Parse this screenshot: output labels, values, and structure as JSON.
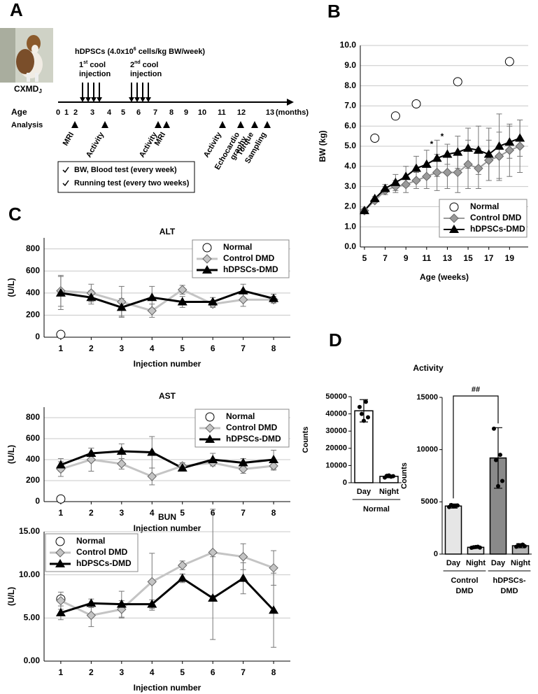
{
  "panel_labels": [
    "A",
    "B",
    "C",
    "D"
  ],
  "timeline": {
    "image_label_main": "CXMD",
    "image_label_sub": "J",
    "dose_prefix": "hDPSCs  (4.0x10",
    "dose_sup": "6",
    "dose_suffix": " cells/kg BW/week)",
    "injections": [
      {
        "ordinal": "1",
        "sup": "st",
        "text": " cool",
        "line2": "injection"
      },
      {
        "ordinal": "2",
        "sup": "nd",
        "text": " cool",
        "line2": "injection"
      }
    ],
    "ages": [
      "0",
      "1",
      "2",
      "3",
      "4",
      "5",
      "6",
      "7",
      "8",
      "9",
      "10",
      "11",
      "12",
      "13"
    ],
    "age_unit": "(months)",
    "age_label": "Age",
    "analysis_label": "Analysis",
    "analyses": [
      [
        "MRI"
      ],
      [
        "Activity"
      ],
      [
        "Activity"
      ],
      [
        "MRI"
      ],
      [
        "Activity"
      ],
      [
        "Echocardio",
        "graphy"
      ],
      [
        "Torque"
      ],
      [
        "Sampling"
      ]
    ],
    "notes": [
      "BW, Blood test (every week)",
      "Running test (every two weeks)"
    ]
  },
  "chart_data": [
    {
      "type": "line",
      "xlabel": "Age (weeks)",
      "ylabel": "BW (kg)",
      "x": [
        5,
        6,
        7,
        8,
        9,
        10,
        11,
        12,
        13,
        14,
        15,
        16,
        17,
        18,
        19,
        20
      ],
      "xlim": [
        4.6,
        20.8
      ],
      "xticks": [
        5,
        7,
        9,
        11,
        13,
        15,
        17,
        19
      ],
      "ylim": [
        0,
        10
      ],
      "yticks": [
        {
          "value": 0,
          "label": "0.0"
        },
        {
          "value": 1,
          "label": "1.0"
        },
        {
          "value": 2,
          "label": "2.0"
        },
        {
          "value": 3,
          "label": "3.0"
        },
        {
          "value": 4,
          "label": "4.0"
        },
        {
          "value": 5,
          "label": "5.0"
        },
        {
          "value": 6,
          "label": "6.0"
        },
        {
          "value": 7,
          "label": "7.0"
        },
        {
          "value": 8,
          "label": "8.0"
        },
        {
          "value": 9,
          "label": "9.0"
        },
        {
          "value": 10,
          "label": "10.0"
        }
      ],
      "grid": true,
      "legend": "lower right",
      "annotations": [
        "*",
        "*"
      ],
      "series": [
        {
          "name": "Normal",
          "color": "#000000",
          "marker": "circle",
          "line": false,
          "values": [
            null,
            5.4,
            null,
            6.5,
            null,
            7.1,
            null,
            null,
            null,
            8.2,
            null,
            null,
            null,
            null,
            9.2,
            null
          ]
        },
        {
          "name": "Control DMD",
          "color": "#9a9a9a",
          "marker": "diamond",
          "values": [
            1.8,
            2.3,
            2.8,
            3.0,
            3.1,
            3.3,
            3.5,
            3.7,
            3.7,
            3.7,
            4.1,
            3.9,
            4.3,
            4.5,
            4.8,
            5.0
          ],
          "errors": [
            0.1,
            0.1,
            0.2,
            0.3,
            0.4,
            0.4,
            0.6,
            0.9,
            0.8,
            1.0,
            1.2,
            1.0,
            1.0,
            1.2,
            1.3,
            1.3
          ]
        },
        {
          "name": "hDPSCs-DMD",
          "color": "#000000",
          "marker": "triangle",
          "values": [
            1.8,
            2.4,
            2.9,
            3.2,
            3.5,
            3.9,
            4.1,
            4.4,
            4.6,
            4.7,
            4.9,
            4.8,
            4.6,
            5.0,
            5.2,
            5.4
          ],
          "errors": [
            0.1,
            0.1,
            0.2,
            0.4,
            0.5,
            0.6,
            0.7,
            0.9,
            0.5,
            0.8,
            1.0,
            1.2,
            1.3,
            1.6,
            0.8,
            0.9
          ]
        }
      ]
    },
    {
      "type": "line",
      "title": "ALT",
      "xlabel": "Injection number",
      "ylabel": "(U/L)",
      "x": [
        1,
        2,
        3,
        4,
        5,
        6,
        7,
        8
      ],
      "xlim": [
        0.45,
        8.55
      ],
      "xticks": [
        1,
        2,
        3,
        4,
        5,
        6,
        7,
        8
      ],
      "ylim": [
        0,
        900
      ],
      "yticks": [
        0,
        200,
        400,
        600,
        800
      ],
      "grid": true,
      "legend": "upper right",
      "series": [
        {
          "name": "Normal",
          "color": "#000000",
          "marker": "circle",
          "line": false,
          "values": [
            25,
            null,
            null,
            null,
            null,
            null,
            null,
            null
          ]
        },
        {
          "name": "Control DMD",
          "color": "#c4c4c4",
          "marker": "diamond",
          "values": [
            420,
            400,
            320,
            240,
            430,
            300,
            340,
            340
          ],
          "errors": [
            140,
            80,
            140,
            60,
            40,
            30,
            60,
            30
          ]
        },
        {
          "name": "hDPSCs-DMD",
          "color": "#000000",
          "marker": "triangle",
          "values": [
            400,
            360,
            270,
            360,
            320,
            320,
            420,
            350
          ],
          "errors": [
            150,
            60,
            80,
            100,
            50,
            40,
            60,
            40
          ]
        }
      ]
    },
    {
      "type": "line",
      "title": "AST",
      "xlabel": "Injection number",
      "ylabel": "(U/L)",
      "x": [
        1,
        2,
        3,
        4,
        5,
        6,
        7,
        8
      ],
      "xlim": [
        0.45,
        8.55
      ],
      "xticks": [
        1,
        2,
        3,
        4,
        5,
        6,
        7,
        8
      ],
      "ylim": [
        0,
        900
      ],
      "yticks": [
        0,
        200,
        400,
        600,
        800
      ],
      "grid": true,
      "legend": "upper right",
      "series": [
        {
          "name": "Normal",
          "color": "#000000",
          "marker": "circle",
          "line": false,
          "values": [
            25,
            null,
            null,
            null,
            null,
            null,
            null,
            null
          ]
        },
        {
          "name": "Control DMD",
          "color": "#c4c4c4",
          "marker": "diamond",
          "values": [
            310,
            400,
            360,
            240,
            340,
            370,
            310,
            340
          ],
          "errors": [
            70,
            110,
            50,
            80,
            30,
            30,
            40,
            40
          ]
        },
        {
          "name": "hDPSCs-DMD",
          "color": "#000000",
          "marker": "triangle",
          "values": [
            350,
            460,
            480,
            470,
            320,
            400,
            370,
            400
          ],
          "errors": [
            60,
            50,
            70,
            150,
            30,
            60,
            40,
            90
          ]
        }
      ]
    },
    {
      "type": "line",
      "title": "BUN",
      "xlabel": "Injection number",
      "ylabel": "(U/L)",
      "x": [
        1,
        2,
        3,
        4,
        5,
        6,
        7,
        8
      ],
      "xlim": [
        0.45,
        8.55
      ],
      "xticks": [
        1,
        2,
        3,
        4,
        5,
        6,
        7,
        8
      ],
      "ylim": [
        0,
        15
      ],
      "yticks": [
        {
          "value": 0,
          "label": "0.00"
        },
        {
          "value": 5,
          "label": "5.00"
        },
        {
          "value": 10,
          "label": "10.00"
        },
        {
          "value": 15,
          "label": "15.00"
        }
      ],
      "grid": true,
      "legend": "upper left",
      "series": [
        {
          "name": "Normal",
          "color": "#000000",
          "marker": "circle",
          "line": false,
          "values": [
            7.2,
            null,
            null,
            null,
            null,
            null,
            null,
            null
          ]
        },
        {
          "name": "Control DMD",
          "color": "#c4c4c4",
          "marker": "diamond",
          "values": [
            7.0,
            5.3,
            6.0,
            9.2,
            11.1,
            12.6,
            12.1,
            10.8
          ],
          "errors": [
            1.0,
            1.3,
            1.0,
            3.3,
            0.5,
            5.0,
            1.5,
            2.0
          ]
        },
        {
          "name": "hDPSCs-DMD",
          "color": "#000000",
          "marker": "triangle",
          "values": [
            5.6,
            6.7,
            6.6,
            6.6,
            9.6,
            7.3,
            9.6,
            5.9
          ],
          "errors": [
            0.8,
            0.5,
            1.5,
            0.5,
            0.5,
            4.8,
            1.8,
            4.3
          ]
        }
      ]
    },
    {
      "type": "bar",
      "title": "Activity",
      "ylabel": "Counts",
      "categories": [
        "Day",
        "Night"
      ],
      "groups": [
        [
          "Normal"
        ]
      ],
      "values": [
        41800,
        3700
      ],
      "errors": [
        6500,
        800
      ],
      "points": [
        [
          44000,
          47000,
          40000,
          38000,
          36000
        ],
        [
          3000,
          3500,
          4000,
          3800,
          4200
        ]
      ],
      "colors": [
        "#ffffff",
        "#ffffff"
      ],
      "ylim": [
        0,
        50000
      ],
      "yticks": [
        0,
        10000,
        20000,
        30000,
        40000,
        50000
      ]
    },
    {
      "type": "bar",
      "ylabel": "Counts",
      "categories": [
        "Day",
        "Night",
        "Day",
        "Night"
      ],
      "groups": [
        [
          "Control",
          "DMD"
        ],
        [
          "hDPSCs-",
          "DMD"
        ]
      ],
      "values": [
        4600,
        650,
        9200,
        800
      ],
      "errors": [
        200,
        100,
        2900,
        200
      ],
      "points": [
        [
          4500,
          4600,
          4700,
          4650,
          4550
        ],
        [
          600,
          700,
          650,
          620,
          680
        ],
        [
          12000,
          9500,
          9000,
          7000,
          6500
        ],
        [
          700,
          900,
          850,
          750,
          800
        ]
      ],
      "colors": [
        "#e6e6e6",
        "#dddddd",
        "#8a8a8a",
        "#b4b4b4"
      ],
      "ylim": [
        0,
        15000
      ],
      "yticks": [
        0,
        5000,
        10000,
        15000
      ],
      "annotations": [
        "##"
      ]
    }
  ]
}
